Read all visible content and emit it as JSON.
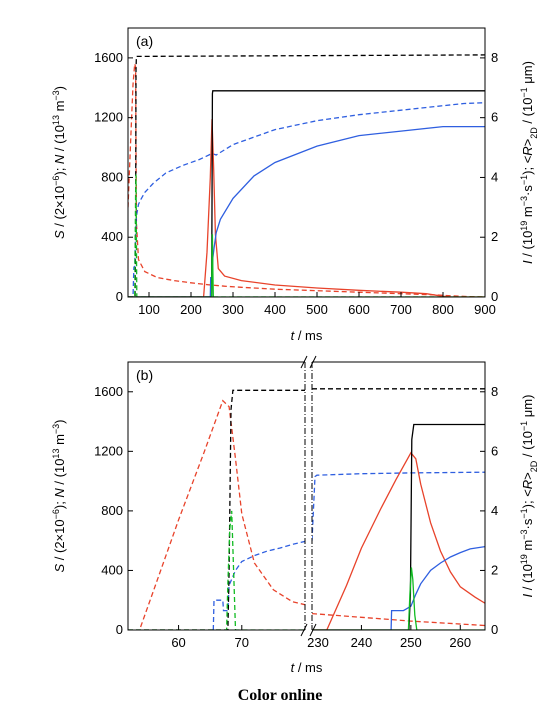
{
  "caption": "Color online",
  "colors": {
    "S": "#e8432b",
    "N": "#2f5fe0",
    "I": "#11bb22",
    "R": "#000000"
  },
  "chart_data": [
    {
      "type": "line",
      "panel_label": "(a)",
      "xlabel": "t / ms",
      "ylabel_left": "S / (2×10⁻⁶); N / (10¹³ m⁻³)",
      "ylabel_right": "I / (10¹⁹ m⁻³·s⁻¹); <R>2D / (10⁻¹ μm)",
      "xlim": [
        50,
        900
      ],
      "ylim_left": [
        0,
        1800
      ],
      "ylim_right": [
        0,
        9
      ],
      "xticks": [
        100,
        200,
        300,
        400,
        500,
        600,
        700,
        800,
        900
      ],
      "yticks_left": [
        0,
        400,
        800,
        1200,
        1600
      ],
      "yticks_right": [
        0,
        2,
        4,
        6,
        8
      ],
      "series": [
        {
          "key": "S",
          "style": "dashed",
          "axis": "left",
          "x": [
            50,
            56,
            62,
            66,
            68,
            70,
            75,
            90,
            120,
            160,
            200,
            240,
            280,
            320,
            400,
            500,
            600,
            700,
            780,
            820,
            860,
            900
          ],
          "y": [
            600,
            1020,
            1420,
            1560,
            1540,
            500,
            250,
            170,
            130,
            110,
            95,
            82,
            72,
            65,
            52,
            42,
            32,
            22,
            14,
            8,
            3,
            0
          ]
        },
        {
          "key": "N",
          "style": "dashed",
          "axis": "left",
          "x": [
            50,
            62,
            64,
            66,
            68,
            70,
            75,
            80,
            90,
            110,
            140,
            180,
            220,
            250,
            260,
            300,
            400,
            500,
            600,
            700,
            800,
            850,
            900
          ],
          "y": [
            0,
            0,
            200,
            200,
            430,
            540,
            620,
            650,
            700,
            760,
            830,
            880,
            920,
            960,
            950,
            1020,
            1120,
            1180,
            1220,
            1250,
            1280,
            1295,
            1300
          ]
        },
        {
          "key": "R",
          "style": "dashed",
          "axis": "right",
          "x": [
            50,
            67,
            68,
            69,
            70,
            900
          ],
          "y": [
            0,
            0,
            2,
            7.6,
            8.05,
            8.1
          ]
        },
        {
          "key": "I",
          "style": "dashed",
          "axis": "right",
          "x": [
            50,
            66,
            68,
            69,
            70,
            71,
            900
          ],
          "y": [
            0,
            0,
            3.5,
            4.1,
            2,
            0,
            0
          ]
        },
        {
          "key": "S",
          "style": "solid",
          "axis": "left",
          "x": [
            50,
            230,
            238,
            246,
            250,
            254,
            258,
            265,
            280,
            320,
            400,
            500,
            600,
            700,
            760,
            800,
            820,
            900
          ],
          "y": [
            0,
            0,
            300,
            800,
            1190,
            850,
            420,
            190,
            140,
            110,
            80,
            60,
            45,
            32,
            22,
            5,
            0,
            0
          ]
        },
        {
          "key": "N",
          "style": "solid",
          "axis": "left",
          "x": [
            50,
            246,
            247,
            248,
            250,
            252,
            255,
            260,
            270,
            300,
            350,
            400,
            500,
            600,
            700,
            800,
            900
          ],
          "y": [
            0,
            0,
            130,
            130,
            135,
            260,
            330,
            430,
            520,
            660,
            810,
            900,
            1010,
            1080,
            1110,
            1140,
            1140
          ]
        },
        {
          "key": "R",
          "style": "solid",
          "axis": "right",
          "x": [
            50,
            249,
            250,
            251,
            252,
            900
          ],
          "y": [
            0,
            0,
            3,
            6.8,
            6.9,
            6.9
          ]
        },
        {
          "key": "I",
          "style": "solid",
          "axis": "right",
          "x": [
            50,
            249,
            250,
            251,
            252,
            253,
            900
          ],
          "y": [
            0,
            0,
            1.5,
            2.1,
            1,
            0,
            0
          ]
        }
      ]
    },
    {
      "type": "line",
      "panel_label": "(b)",
      "xlabel": "t / ms",
      "ylabel_left": "S / (2×10⁻⁶); N / (10¹³ m⁻³)",
      "ylabel_right": "I / (10¹⁹ m⁻³·s⁻¹); <R>2D / (10⁻¹ μm)",
      "broken_x_axis": true,
      "xlim_left_segment": [
        52,
        80
      ],
      "xlim_right_segment": [
        230,
        265
      ],
      "ylim_left": [
        0,
        1800
      ],
      "ylim_right": [
        0,
        9
      ],
      "xticks_left_segment": [
        60,
        70
      ],
      "xticks_right_segment": [
        230,
        240,
        250,
        260
      ],
      "yticks_left": [
        0,
        400,
        800,
        1200,
        1600
      ],
      "yticks_right": [
        0,
        2,
        4,
        6,
        8
      ],
      "series": [
        {
          "key": "S",
          "style": "dashed",
          "axis": "left",
          "x": [
            54,
            56,
            60,
            64,
            67,
            68,
            69,
            70,
            72,
            75,
            78,
            80,
            230,
            240,
            250,
            265
          ],
          "y": [
            20,
            260,
            740,
            1190,
            1540,
            1500,
            1150,
            780,
            450,
            270,
            190,
            170,
            110,
            85,
            60,
            30
          ]
        },
        {
          "key": "N",
          "style": "dashed",
          "axis": "left",
          "x": [
            65.5,
            65.6,
            67,
            67.1,
            67.8,
            68,
            69,
            70,
            72,
            74,
            76,
            78,
            80,
            230,
            230.6,
            231,
            240,
            250,
            265
          ],
          "y": [
            0,
            200,
            200,
            130,
            130,
            300,
            400,
            460,
            500,
            530,
            550,
            575,
            595,
            600,
            1030,
            1040,
            1050,
            1055,
            1060
          ]
        },
        {
          "key": "R",
          "style": "dashed",
          "axis": "right",
          "x": [
            52,
            67.8,
            68,
            68.3,
            68.6,
            80,
            230,
            265
          ],
          "y": [
            0,
            0,
            2,
            7.4,
            8.05,
            8.05,
            8.1,
            8.1
          ]
        },
        {
          "key": "I",
          "style": "dashed",
          "axis": "right",
          "x": [
            52,
            67.6,
            67.8,
            68.1,
            68.4,
            68.7,
            69,
            80
          ],
          "y": [
            0,
            0,
            1.6,
            3.4,
            4,
            2,
            0,
            0
          ]
        },
        {
          "key": "S",
          "style": "solid",
          "axis": "left",
          "x": [
            230,
            233,
            237,
            240,
            244,
            247,
            250,
            251,
            252,
            254,
            256,
            258,
            260,
            263,
            265
          ],
          "y": [
            0,
            0,
            300,
            550,
            820,
            1010,
            1190,
            1150,
            980,
            720,
            530,
            390,
            290,
            220,
            180
          ]
        },
        {
          "key": "N",
          "style": "solid",
          "axis": "left",
          "x": [
            246,
            246.1,
            248,
            248.5,
            249,
            250,
            251,
            252,
            254,
            256,
            258,
            260,
            262,
            265
          ],
          "y": [
            0,
            130,
            130,
            130,
            140,
            160,
            240,
            310,
            400,
            450,
            490,
            520,
            545,
            560
          ]
        },
        {
          "key": "R",
          "style": "solid",
          "axis": "right",
          "x": [
            230,
            249.6,
            249.9,
            250.2,
            250.6,
            265
          ],
          "y": [
            0,
            0,
            1.2,
            6.4,
            6.9,
            6.9
          ]
        },
        {
          "key": "I",
          "style": "solid",
          "axis": "right",
          "x": [
            230,
            249.5,
            249.8,
            250.1,
            250.4,
            250.8,
            251.2,
            265
          ],
          "y": [
            0,
            0,
            1.2,
            2.1,
            1.7,
            0.5,
            0,
            0
          ]
        }
      ]
    }
  ]
}
